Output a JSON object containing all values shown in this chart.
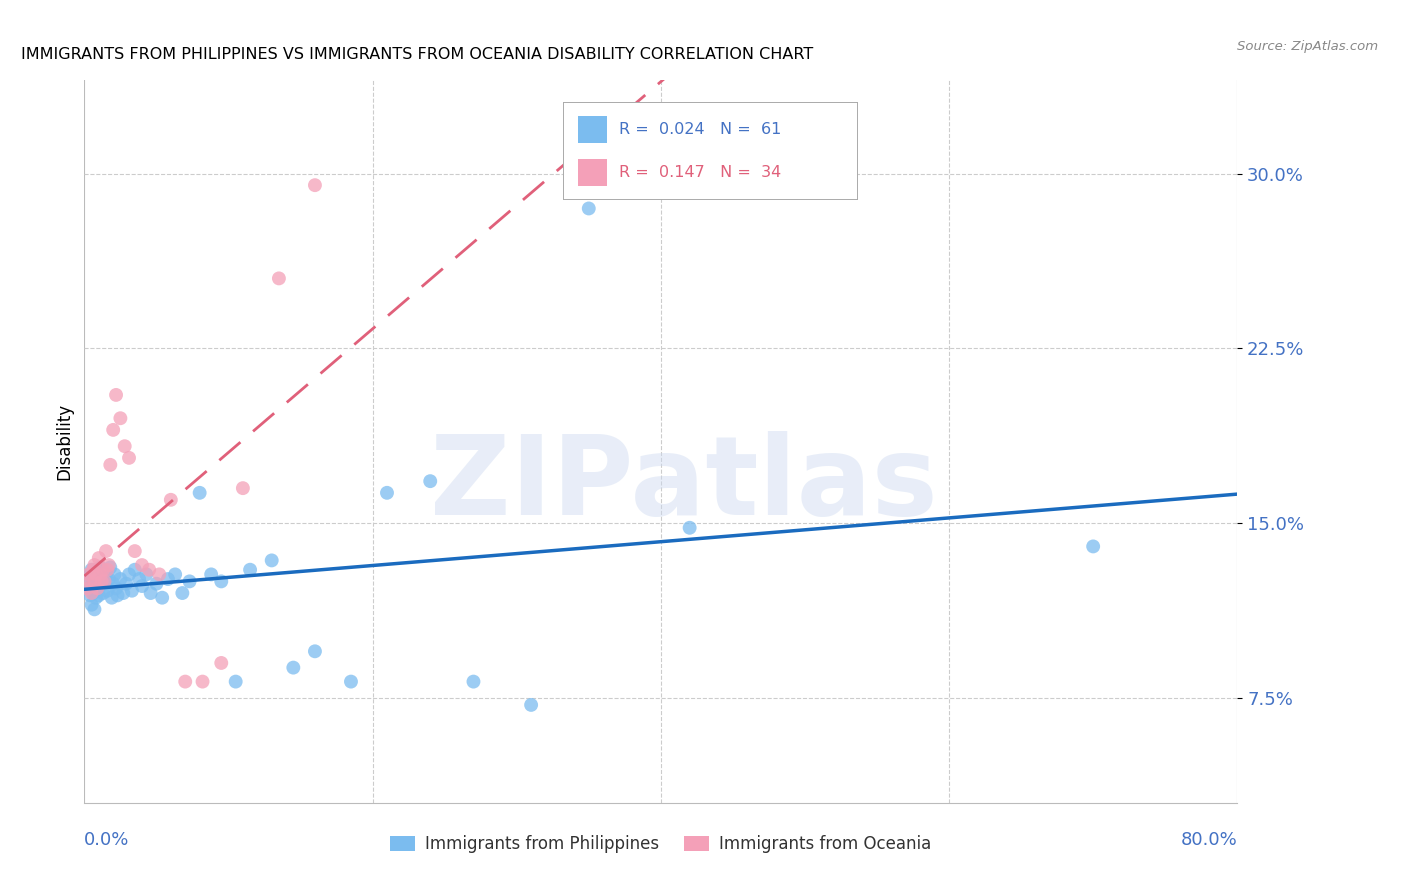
{
  "title": "IMMIGRANTS FROM PHILIPPINES VS IMMIGRANTS FROM OCEANIA DISABILITY CORRELATION CHART",
  "source": "Source: ZipAtlas.com",
  "ylabel": "Disability",
  "yticks": [
    0.075,
    0.15,
    0.225,
    0.3
  ],
  "ytick_labels": [
    "7.5%",
    "15.0%",
    "22.5%",
    "30.0%"
  ],
  "xlim": [
    0.0,
    0.8
  ],
  "ylim": [
    0.03,
    0.34
  ],
  "color_blue": "#7bbcef",
  "color_pink": "#f4a0b8",
  "line_blue": "#1a6bbf",
  "line_pink": "#e0607a",
  "watermark": "ZIPatlas",
  "phil_x": [
    0.002,
    0.003,
    0.004,
    0.005,
    0.005,
    0.006,
    0.006,
    0.007,
    0.007,
    0.008,
    0.008,
    0.009,
    0.009,
    0.01,
    0.01,
    0.011,
    0.011,
    0.012,
    0.013,
    0.014,
    0.015,
    0.016,
    0.017,
    0.018,
    0.019,
    0.02,
    0.021,
    0.022,
    0.023,
    0.025,
    0.027,
    0.029,
    0.031,
    0.033,
    0.035,
    0.038,
    0.04,
    0.043,
    0.046,
    0.05,
    0.054,
    0.058,
    0.063,
    0.068,
    0.073,
    0.08,
    0.088,
    0.095,
    0.105,
    0.115,
    0.13,
    0.145,
    0.16,
    0.185,
    0.21,
    0.24,
    0.27,
    0.31,
    0.35,
    0.42,
    0.7
  ],
  "phil_y": [
    0.127,
    0.122,
    0.119,
    0.13,
    0.115,
    0.125,
    0.12,
    0.128,
    0.113,
    0.125,
    0.118,
    0.122,
    0.13,
    0.126,
    0.119,
    0.124,
    0.131,
    0.127,
    0.12,
    0.125,
    0.128,
    0.121,
    0.126,
    0.131,
    0.118,
    0.124,
    0.128,
    0.122,
    0.119,
    0.126,
    0.12,
    0.124,
    0.128,
    0.121,
    0.13,
    0.126,
    0.123,
    0.128,
    0.12,
    0.124,
    0.118,
    0.126,
    0.128,
    0.12,
    0.125,
    0.163,
    0.128,
    0.125,
    0.082,
    0.13,
    0.134,
    0.088,
    0.095,
    0.082,
    0.163,
    0.168,
    0.082,
    0.072,
    0.285,
    0.148,
    0.14
  ],
  "oce_x": [
    0.002,
    0.003,
    0.004,
    0.005,
    0.006,
    0.007,
    0.007,
    0.008,
    0.009,
    0.01,
    0.011,
    0.012,
    0.013,
    0.014,
    0.015,
    0.016,
    0.017,
    0.018,
    0.02,
    0.022,
    0.025,
    0.028,
    0.031,
    0.035,
    0.04,
    0.045,
    0.052,
    0.06,
    0.07,
    0.082,
    0.095,
    0.11,
    0.135,
    0.16
  ],
  "oce_y": [
    0.122,
    0.128,
    0.125,
    0.12,
    0.13,
    0.125,
    0.132,
    0.128,
    0.122,
    0.135,
    0.128,
    0.125,
    0.13,
    0.125,
    0.138,
    0.13,
    0.132,
    0.175,
    0.19,
    0.205,
    0.195,
    0.183,
    0.178,
    0.138,
    0.132,
    0.13,
    0.128,
    0.16,
    0.082,
    0.082,
    0.09,
    0.165,
    0.255,
    0.295
  ]
}
